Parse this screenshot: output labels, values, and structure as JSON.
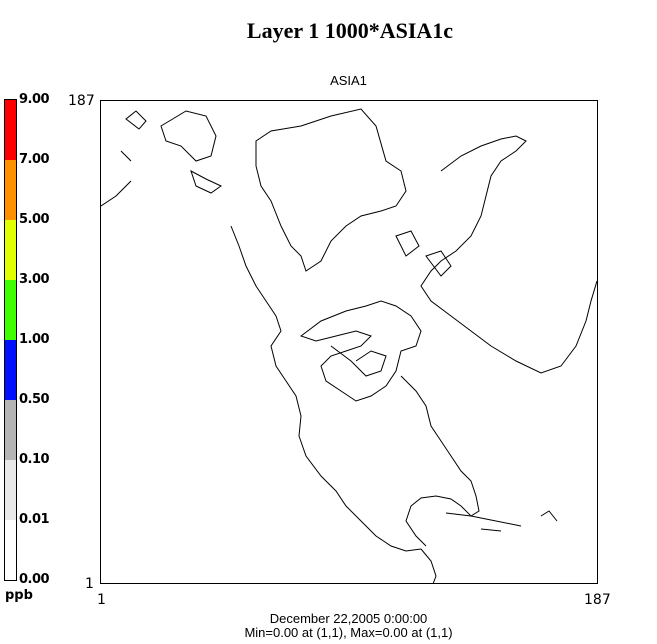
{
  "title": "Layer 1  1000*ASIA1c",
  "subtitle": "ASIA1",
  "legend": {
    "units": "ppb",
    "labels": [
      "9.00",
      "7.00",
      "5.00",
      "3.00",
      "1.00",
      "0.50",
      "0.10",
      "0.01",
      "0.00"
    ],
    "colors": [
      "#ff0000",
      "#ff9000",
      "#e0ff00",
      "#40ff00",
      "#0010ff",
      "#b4b4b4",
      "#e8e8e8",
      "#ffffff"
    ]
  },
  "axes": {
    "y_max": "187",
    "y_min": "1",
    "x_min": "1",
    "x_max": "187"
  },
  "footer": {
    "date": "December 22,2005 0:00:00",
    "stats": "Min=0.00 at (1,1), Max=0.00 at (1,1)"
  }
}
